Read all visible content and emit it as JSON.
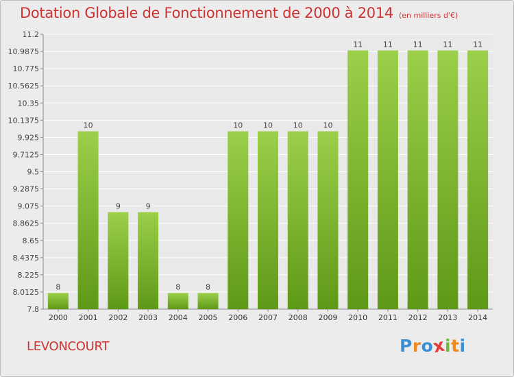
{
  "title": "Dotation Globale de Fonctionnement de 2000 à 2014",
  "unit": "(en milliers d'€)",
  "commune": "LEVONCOURT",
  "logo": {
    "letters": [
      "P",
      "r",
      "o",
      "x",
      "i",
      "t",
      "i"
    ],
    "colors": [
      "#3b8fd6",
      "#f08a1c",
      "#3b8fd6",
      "#e23b3b",
      "#6fb83a",
      "#f08a1c",
      "#3b8fd6"
    ]
  },
  "colors": {
    "bar_top": "#9ccf4a",
    "bar_bottom": "#5e9916",
    "text": "#cc3333",
    "axis_text": "#444444",
    "grid": "#ffffff"
  },
  "chart_data": {
    "type": "bar",
    "title": "Dotation Globale de Fonctionnement de 2000 à 2014",
    "subtitle": "(en milliers d'€)",
    "xlabel": "",
    "ylabel": "",
    "categories": [
      "2000",
      "2001",
      "2002",
      "2003",
      "2004",
      "2005",
      "2006",
      "2007",
      "2008",
      "2009",
      "2010",
      "2011",
      "2012",
      "2013",
      "2014"
    ],
    "values": [
      8,
      10,
      9,
      9,
      8,
      8,
      10,
      10,
      10,
      10,
      11,
      11,
      11,
      11,
      11
    ],
    "labels": [
      "8",
      "10",
      "9",
      "9",
      "8",
      "8",
      "10",
      "10",
      "10",
      "10",
      "11",
      "11",
      "11",
      "11",
      "11"
    ],
    "ylim": [
      7.8,
      11.2
    ],
    "yticks": [
      7.8,
      8.0125,
      8.225,
      8.4375,
      8.65,
      8.8625,
      9.075,
      9.2875,
      9.5,
      9.7125,
      9.925,
      10.1375,
      10.35,
      10.5625,
      10.775,
      10.9875,
      11.2
    ],
    "ytick_labels": [
      "7.8",
      "8.0125",
      "8.225",
      "8.4375",
      "8.65",
      "8.8625",
      "9.075",
      "9.2875",
      "9.5",
      "9.7125",
      "9.925",
      "10.1375",
      "10.35",
      "10.5625",
      "10.775",
      "10.9875",
      "11.2"
    ],
    "grid": true
  }
}
